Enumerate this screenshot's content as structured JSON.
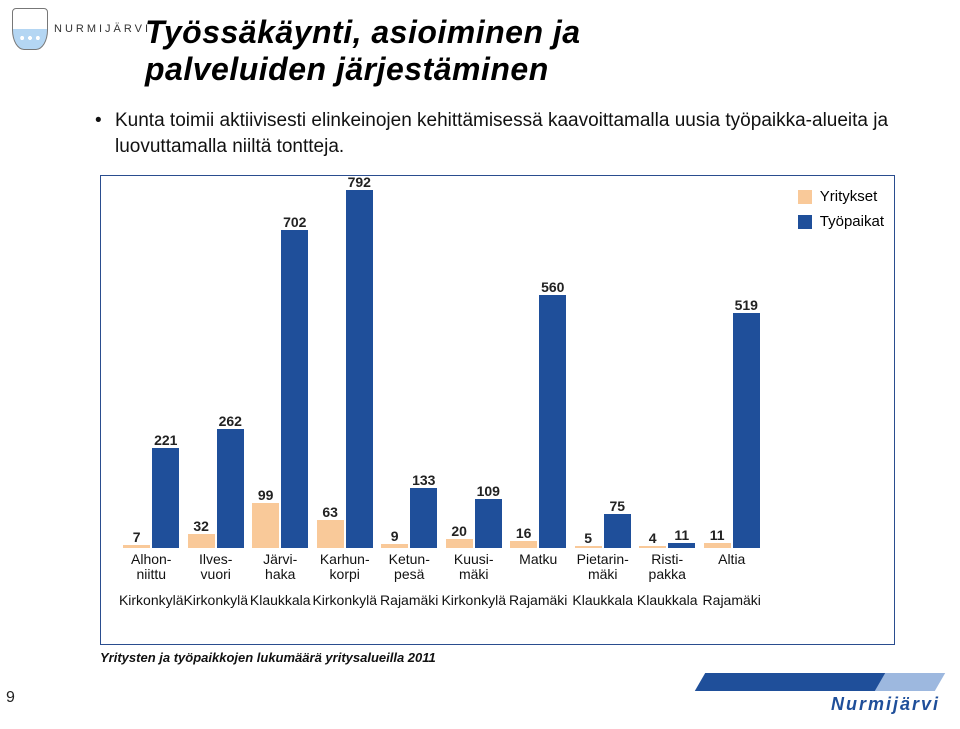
{
  "colors": {
    "yritykset": "#f9c999",
    "tyopaikat": "#1f4f9a",
    "chart_border": "#2a4d8f",
    "text": "#111111",
    "background": "#ffffff",
    "brand": "#1f4f9a"
  },
  "logo_text": "NURMIJÄRVI",
  "heading_line1": "Työssäkäynti, asioiminen ja",
  "heading_line2": "palveluiden järjestäminen",
  "bullet": "Kunta toimii aktiivisesti elinkeinojen kehittämisessä kaavoittamalla uusia työpaikka-alueita ja luovuttamalla niiltä tontteja.",
  "legend": {
    "yritykset": "Yritykset",
    "tyopaikat": "Työpaikat"
  },
  "chart": {
    "type": "bar",
    "y_max": 800,
    "font_size": 14,
    "value_font_weight": "600",
    "bar_group_gap_pct": 0.6,
    "categories": [
      {
        "label": "Alhon-\nniittu",
        "sub": "Kirkonkylä",
        "yritykset": 7,
        "tyopaikat": 221
      },
      {
        "label": "Ilves-\nvuori",
        "sub": "Kirkonkylä",
        "yritykset": 32,
        "tyopaikat": 262
      },
      {
        "label": "Järvi-\nhaka",
        "sub": "Klaukkala",
        "yritykset": 99,
        "tyopaikat": 702
      },
      {
        "label": "Karhun-\nkorpi",
        "sub": "Kirkonkylä",
        "yritykset": 63,
        "tyopaikat": 792
      },
      {
        "label": "Ketun-\npesä",
        "sub": "Rajamäki",
        "yritykset": 9,
        "tyopaikat": 133
      },
      {
        "label": "Kuusi-\nmäki",
        "sub": "Kirkonkylä",
        "yritykset": 20,
        "tyopaikat": 109
      },
      {
        "label": "Matku",
        "sub": "Rajamäki",
        "yritykset": 16,
        "tyopaikat": 560
      },
      {
        "label": "Pietarin-\nmäki",
        "sub": "Klaukkala",
        "yritykset": 5,
        "tyopaikat": 75
      },
      {
        "label": "Risti-\npakka",
        "sub": "Klaukkala",
        "yritykset": 4,
        "tyopaikat": 11
      },
      {
        "label": "Altia",
        "sub": "Rajamäki",
        "yritykset": 11,
        "tyopaikat": 519
      }
    ]
  },
  "caption": "Yritysten ja työpaikkojen lukumäärä yritysalueilla 2011",
  "page_number": "9",
  "footer_brand": "Nurmijärvi"
}
